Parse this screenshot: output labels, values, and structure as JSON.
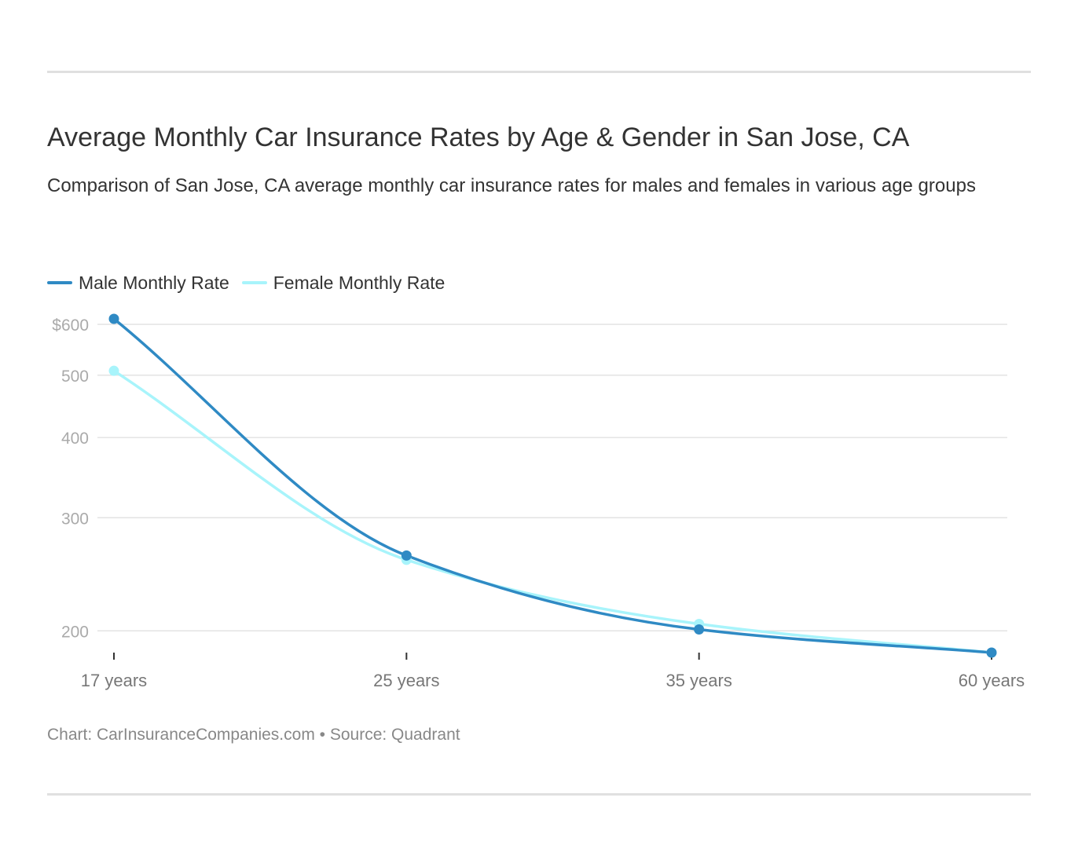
{
  "header": {
    "title": "Average Monthly Car Insurance Rates by Age & Gender in San Jose, CA",
    "subtitle": "Comparison of San Jose, CA average monthly car insurance rates for males and females in various age groups"
  },
  "footer": {
    "credit": "Chart: CarInsuranceCompanies.com • Source: Quadrant"
  },
  "colors": {
    "male": "#2f8ac4",
    "female": "#a8f4fb",
    "grid": "#e3e3e3",
    "tick_label": "#aaaaaa",
    "x_label": "#777777"
  },
  "chart_data": {
    "type": "line",
    "title": "Average Monthly Car Insurance Rates by Age & Gender in San Jose, CA",
    "subtitle": "Comparison of San Jose, CA average monthly car insurance rates for males and females in various age groups",
    "categories": [
      "17 years",
      "25 years",
      "35 years",
      "60 years"
    ],
    "series": [
      {
        "name": "Male Monthly Rate",
        "values": [
          612,
          262,
          201,
          185
        ]
      },
      {
        "name": "Female Monthly Rate",
        "values": [
          508,
          258,
          205,
          185
        ]
      }
    ],
    "y_scale": "log",
    "ylim": [
      185,
      612
    ],
    "y_ticks": [
      200,
      300,
      400,
      500,
      600
    ],
    "y_tick_labels": [
      "200",
      "300",
      "400",
      "500",
      "$600"
    ],
    "grid": true,
    "legend": "top-left",
    "smooth": true
  }
}
